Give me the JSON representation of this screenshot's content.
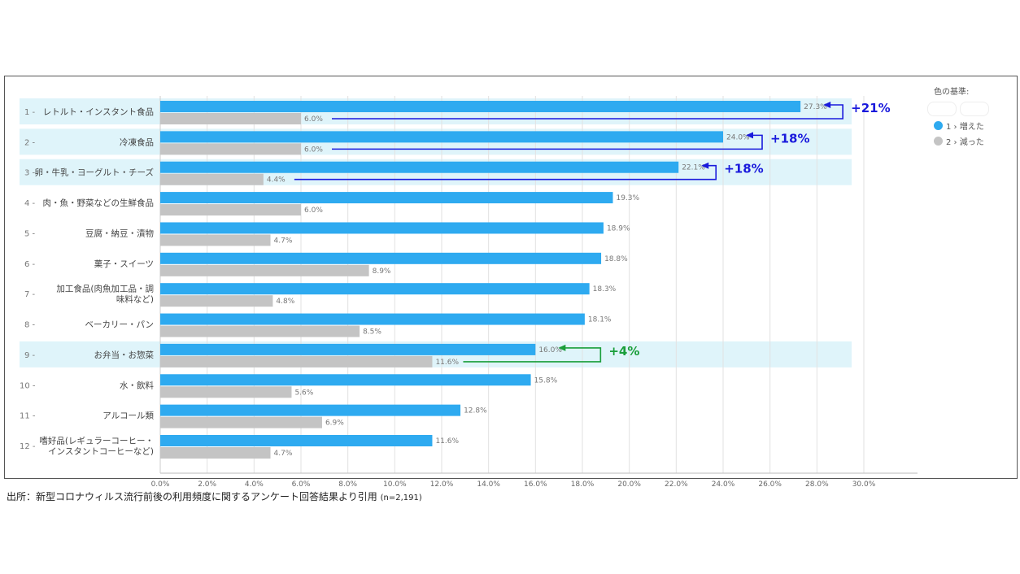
{
  "chart_data": {
    "type": "bar",
    "orientation": "horizontal",
    "categories": [
      "レトルト・インスタント食品",
      "冷凍食品",
      "卵・牛乳・ヨーグルト・チーズ",
      "肉・魚・野菜などの生鮮食品",
      "豆腐・納豆・漬物",
      "菓子・スイーツ",
      "加工食品(肉魚加工品・調味料など)",
      "ベーカリー・パン",
      "お弁当・お惣菜",
      "水・飲料",
      "アルコール類",
      "嗜好品(レギュラーコーヒー・インスタントコーヒーなど)"
    ],
    "category_lines": [
      [
        "レトルト・インスタント食品"
      ],
      [
        "冷凍食品"
      ],
      [
        "卵・牛乳・ヨーグルト・チーズ"
      ],
      [
        "肉・魚・野菜などの生鮮食品"
      ],
      [
        "豆腐・納豆・漬物"
      ],
      [
        "菓子・スイーツ"
      ],
      [
        "加工食品(肉魚加工品・調",
        "味料など)"
      ],
      [
        "ベーカリー・パン"
      ],
      [
        "お弁当・お惣菜"
      ],
      [
        "水・飲料"
      ],
      [
        "アルコール類"
      ],
      [
        "嗜好品(レギュラーコーヒー・",
        "インスタントコーヒーなど)"
      ]
    ],
    "ranks": [
      "1",
      "2",
      "3",
      "4",
      "5",
      "6",
      "7",
      "8",
      "9",
      "10",
      "11",
      "12"
    ],
    "series": [
      {
        "name": "1 › 増えた",
        "color": "#2eaaf0",
        "values": [
          27.3,
          24.0,
          22.1,
          19.3,
          18.9,
          18.8,
          18.3,
          18.1,
          16.0,
          15.8,
          12.8,
          11.6
        ]
      },
      {
        "name": "2 › 減った",
        "color": "#c4c4c4",
        "values": [
          6.0,
          6.0,
          4.4,
          6.0,
          4.7,
          8.9,
          4.8,
          8.5,
          11.6,
          5.6,
          6.9,
          4.7
        ]
      }
    ],
    "value_labels": [
      [
        "27.3%",
        "24.0%",
        "22.1%",
        "19.3%",
        "18.9%",
        "18.8%",
        "18.3%",
        "18.1%",
        "16.0%",
        "15.8%",
        "12.8%",
        "11.6%"
      ],
      [
        "6.0%",
        "6.0%",
        "4.4%",
        "6.0%",
        "4.7%",
        "8.9%",
        "4.8%",
        "8.5%",
        "11.6%",
        "5.6%",
        "6.9%",
        "4.7%"
      ]
    ],
    "xlim": [
      0,
      30
    ],
    "xticks": [
      "0.0%",
      "2.0%",
      "4.0%",
      "6.0%",
      "8.0%",
      "10.0%",
      "12.0%",
      "14.0%",
      "16.0%",
      "18.0%",
      "20.0%",
      "22.0%",
      "24.0%",
      "26.0%",
      "28.0%",
      "30.0%"
    ],
    "grid": true,
    "highlighted_rows": [
      1,
      2,
      3,
      9
    ],
    "highlight_color": "#dff4fa",
    "annotations": [
      {
        "row": 1,
        "text": "+21%",
        "color": "#1a1adc"
      },
      {
        "row": 2,
        "text": "+18%",
        "color": "#1a1adc"
      },
      {
        "row": 3,
        "text": "+18%",
        "color": "#1a1adc"
      },
      {
        "row": 9,
        "text": "+4%",
        "color": "#1a9e3a"
      }
    ],
    "legend_title": "色の基準:",
    "legend_position": "right"
  },
  "caption": {
    "text": "出所：新型コロナウィルス流行前後の利用頻度に関するアンケート回答結果より引用",
    "n": "(n=2,191)"
  }
}
